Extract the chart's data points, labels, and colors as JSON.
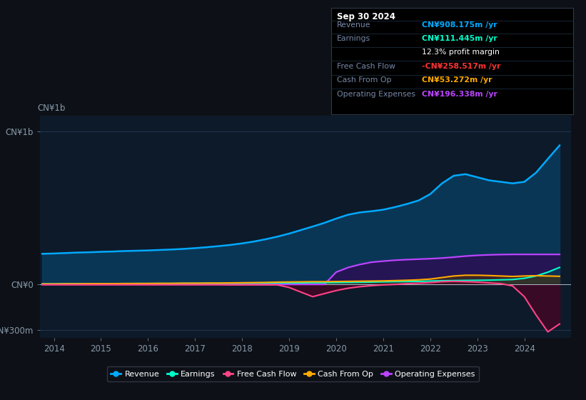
{
  "background_color": "#0d1117",
  "plot_bg_color": "#0d1a2a",
  "text_color": "#8899aa",
  "ylim": [
    -350,
    1100
  ],
  "yticks": [
    -300,
    0,
    1000
  ],
  "ytick_labels": [
    "-CN¥300m",
    "CN¥0",
    "CN¥1b"
  ],
  "xlim": [
    2013.7,
    2025.0
  ],
  "xticks": [
    2014,
    2015,
    2016,
    2017,
    2018,
    2019,
    2020,
    2021,
    2022,
    2023,
    2024
  ],
  "years": [
    2013.75,
    2014.0,
    2014.25,
    2014.5,
    2014.75,
    2015.0,
    2015.25,
    2015.5,
    2015.75,
    2016.0,
    2016.25,
    2016.5,
    2016.75,
    2017.0,
    2017.25,
    2017.5,
    2017.75,
    2018.0,
    2018.25,
    2018.5,
    2018.75,
    2019.0,
    2019.25,
    2019.5,
    2019.75,
    2020.0,
    2020.25,
    2020.5,
    2020.75,
    2021.0,
    2021.25,
    2021.5,
    2021.75,
    2022.0,
    2022.25,
    2022.5,
    2022.75,
    2023.0,
    2023.25,
    2023.5,
    2023.75,
    2024.0,
    2024.25,
    2024.5,
    2024.75
  ],
  "revenue": [
    200,
    202,
    205,
    208,
    210,
    213,
    215,
    218,
    220,
    222,
    225,
    228,
    232,
    237,
    243,
    250,
    258,
    268,
    280,
    295,
    312,
    332,
    355,
    378,
    402,
    430,
    455,
    470,
    478,
    488,
    505,
    525,
    548,
    590,
    660,
    710,
    720,
    700,
    680,
    670,
    660,
    670,
    730,
    820,
    908
  ],
  "earnings": [
    4,
    4,
    5,
    5,
    5,
    5,
    5,
    5,
    6,
    6,
    6,
    6,
    7,
    7,
    7,
    7,
    8,
    8,
    9,
    9,
    10,
    10,
    10,
    11,
    11,
    12,
    13,
    14,
    15,
    17,
    18,
    19,
    20,
    22,
    24,
    25,
    26,
    27,
    28,
    30,
    32,
    40,
    55,
    80,
    111
  ],
  "free_cash_flow": [
    -2,
    -2,
    -2,
    -2,
    -2,
    -2,
    -2,
    -2,
    -2,
    -2,
    -2,
    -2,
    -2,
    -2,
    -2,
    -2,
    -3,
    -3,
    -3,
    -3,
    -3,
    -20,
    -50,
    -80,
    -60,
    -40,
    -25,
    -15,
    -8,
    -3,
    0,
    5,
    8,
    12,
    18,
    20,
    18,
    15,
    10,
    5,
    -10,
    -80,
    -200,
    -310,
    -258
  ],
  "cash_from_op": [
    3,
    3,
    4,
    4,
    5,
    5,
    5,
    6,
    6,
    6,
    7,
    7,
    8,
    8,
    9,
    9,
    10,
    11,
    12,
    13,
    15,
    16,
    17,
    18,
    18,
    19,
    20,
    21,
    22,
    23,
    25,
    27,
    30,
    35,
    45,
    55,
    60,
    60,
    58,
    55,
    52,
    55,
    57,
    55,
    53
  ],
  "op_expenses": [
    0,
    0,
    0,
    0,
    0,
    0,
    0,
    0,
    0,
    0,
    0,
    0,
    0,
    0,
    0,
    0,
    0,
    0,
    0,
    0,
    0,
    0,
    0,
    0,
    0,
    80,
    110,
    130,
    145,
    152,
    158,
    162,
    165,
    168,
    172,
    178,
    185,
    190,
    193,
    195,
    196,
    196,
    196,
    196,
    196
  ],
  "info_box": {
    "date": "Sep 30 2024",
    "rows": [
      {
        "label": "Revenue",
        "value": "CN¥908.175m /yr",
        "value_color": "#00aaff"
      },
      {
        "label": "Earnings",
        "value": "CN¥111.445m /yr",
        "value_color": "#00ffcc"
      },
      {
        "label": "",
        "value": "12.3% profit margin",
        "value_color": "#ffffff"
      },
      {
        "label": "Free Cash Flow",
        "value": "-CN¥258.517m /yr",
        "value_color": "#ff3333"
      },
      {
        "label": "Cash From Op",
        "value": "CN¥53.272m /yr",
        "value_color": "#ffaa00"
      },
      {
        "label": "Operating Expenses",
        "value": "CN¥196.338m /yr",
        "value_color": "#bb44ff"
      }
    ]
  },
  "legend": [
    {
      "label": "Revenue",
      "color": "#00aaff"
    },
    {
      "label": "Earnings",
      "color": "#00ffcc"
    },
    {
      "label": "Free Cash Flow",
      "color": "#ff4488"
    },
    {
      "label": "Cash From Op",
      "color": "#ffaa00"
    },
    {
      "label": "Operating Expenses",
      "color": "#bb44ff"
    }
  ],
  "line_colors": {
    "revenue": "#00aaff",
    "earnings": "#00ffcc",
    "free_cash_flow": "#ff4488",
    "cash_from_op": "#ffaa00",
    "op_expenses": "#bb44ff"
  },
  "fill_colors": {
    "revenue": "#0a3a5c",
    "op_expenses": "#2a1055",
    "earnings": "#004455",
    "cash_from_op": "#553300",
    "free_cash_flow": "#550022"
  }
}
